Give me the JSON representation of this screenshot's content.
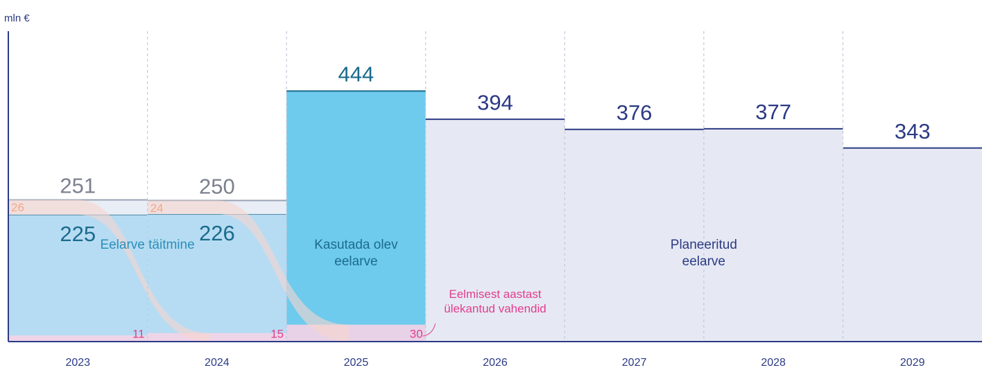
{
  "chart_data": {
    "type": "bar",
    "unit_label": "mln €",
    "categories": [
      "2023",
      "2024",
      "2025",
      "2026",
      "2027",
      "2028",
      "2029"
    ],
    "series": [
      {
        "name": "Eelarve täitmine",
        "color": "#b6dcf3",
        "line_color": "#4a86a3",
        "label_color": "#1b6b8c",
        "values": [
          225,
          226,
          null,
          null,
          null,
          null,
          null
        ]
      },
      {
        "name": "Kasutada olev eelarve",
        "color": "#6ecbed",
        "line_color": "#1b6b8c",
        "label_color": "#1b6b8c",
        "values": [
          null,
          null,
          444,
          null,
          null,
          null,
          null
        ]
      },
      {
        "name": "Planeeritud eelarve",
        "color": "#e6e9f3",
        "line_color": "#2b3a84",
        "label_color": "#2b3a84",
        "values": [
          null,
          null,
          null,
          394,
          376,
          377,
          343
        ]
      }
    ],
    "unused": {
      "color": "#fadfd0",
      "label_color": "#e8641e",
      "values": [
        26,
        24,
        null,
        null,
        null,
        null,
        null
      ]
    },
    "budget_totals": {
      "color": "#7c818e",
      "values": [
        251,
        250,
        null,
        null,
        null,
        null,
        null
      ]
    },
    "carried_over": {
      "name": "Eelmisest aastast ülekantud vahendid",
      "color": "#f4d3e6",
      "label_color": "#e23d8f",
      "values": [
        11,
        15,
        30,
        null,
        null,
        null,
        null
      ]
    },
    "ylim": [
      0,
      550
    ]
  }
}
